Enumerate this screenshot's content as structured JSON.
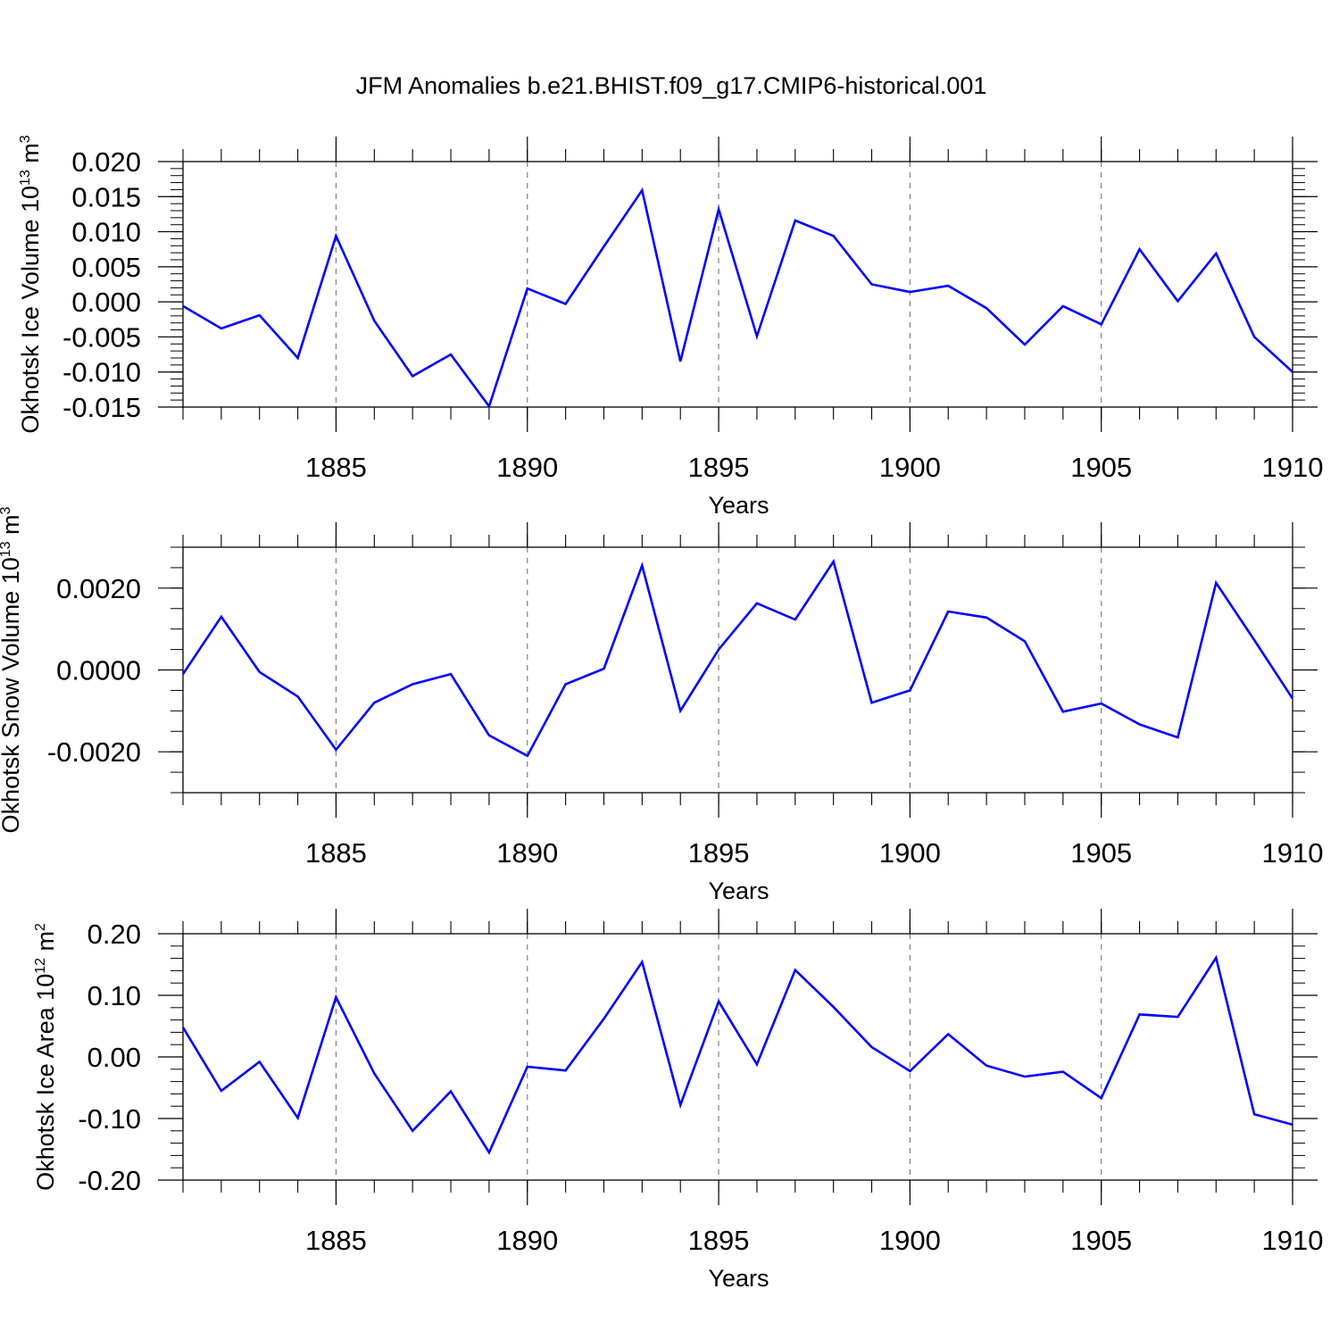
{
  "title": "JFM Anomalies b.e21.BHIST.f09_g17.CMIP6-historical.001",
  "colors": {
    "series": "#0000ff",
    "axis": "#000000",
    "grid": "#808080",
    "background": "#ffffff"
  },
  "chart_data": [
    {
      "type": "line",
      "title": "JFM Anomalies b.e21.BHIST.f09_g17.CMIP6-historical.001",
      "xlabel": "Years",
      "ylabel": {
        "text": "Okhotsk Ice Volume 10",
        "exp": "13",
        "unit": " m",
        "unit_exp": "3"
      },
      "xlim": [
        1881,
        1910
      ],
      "ylim": [
        -0.015,
        0.02
      ],
      "x_ticks": [
        1885,
        1890,
        1895,
        1900,
        1905,
        1910
      ],
      "x_tick_labels": [
        "1885",
        "1890",
        "1895",
        "1900",
        "1905",
        "1910"
      ],
      "y_ticks": [
        -0.015,
        -0.01,
        -0.005,
        0.0,
        0.005,
        0.01,
        0.015,
        0.02
      ],
      "y_tick_labels": [
        "-0.015",
        "-0.010",
        "-0.005",
        "0.000",
        "0.005",
        "0.010",
        "0.015",
        "0.020"
      ],
      "y_minor_step": 0.001,
      "grid": "vertical dashed at major x ticks",
      "x": [
        1881,
        1882,
        1883,
        1884,
        1885,
        1886,
        1887,
        1888,
        1889,
        1890,
        1891,
        1892,
        1893,
        1894,
        1895,
        1896,
        1897,
        1898,
        1899,
        1900,
        1901,
        1902,
        1903,
        1904,
        1905,
        1906,
        1907,
        1908,
        1909,
        1910
      ],
      "series": [
        {
          "name": "Okhotsk Ice Volume",
          "values": [
            -0.0006,
            -0.0038,
            -0.0019,
            -0.008,
            0.0094,
            -0.0027,
            -0.0106,
            -0.0075,
            -0.0149,
            0.0019,
            -0.0003,
            0.0079,
            0.0159,
            -0.0085,
            0.0132,
            -0.0049,
            0.0116,
            0.0094,
            0.0025,
            0.0014,
            0.0023,
            -0.0009,
            -0.0061,
            -0.0006,
            -0.0032,
            0.0075,
            0.0001,
            0.0069,
            -0.005,
            -0.01
          ]
        }
      ]
    },
    {
      "type": "line",
      "xlabel": "Years",
      "ylabel": {
        "text": "Okhotsk Snow Volume 10",
        "exp": "13",
        "unit": " m",
        "unit_exp": "3"
      },
      "xlim": [
        1881,
        1910
      ],
      "ylim": [
        -0.003,
        0.003
      ],
      "x_ticks": [
        1885,
        1890,
        1895,
        1900,
        1905,
        1910
      ],
      "x_tick_labels": [
        "1885",
        "1890",
        "1895",
        "1900",
        "1905",
        "1910"
      ],
      "y_ticks": [
        -0.002,
        0.0,
        0.002
      ],
      "y_tick_labels": [
        "-0.0020",
        "0.0000",
        "0.0020"
      ],
      "y_minor_step": 0.0005,
      "grid": "vertical dashed at major x ticks",
      "x": [
        1881,
        1882,
        1883,
        1884,
        1885,
        1886,
        1887,
        1888,
        1889,
        1890,
        1891,
        1892,
        1893,
        1894,
        1895,
        1896,
        1897,
        1898,
        1899,
        1900,
        1901,
        1902,
        1903,
        1904,
        1905,
        1906,
        1907,
        1908,
        1909,
        1910
      ],
      "series": [
        {
          "name": "Okhotsk Snow Volume",
          "values": [
            -0.0001,
            0.0013,
            -5e-05,
            -0.00065,
            -0.00195,
            -0.0008,
            -0.00035,
            -0.0001,
            -0.0016,
            -0.0021,
            -0.00035,
            3e-05,
            0.00255,
            -0.001,
            0.0005,
            0.00163,
            0.00123,
            0.00265,
            -0.0008,
            -0.0005,
            0.00143,
            0.00128,
            0.0007,
            -0.00102,
            -0.00082,
            -0.00133,
            -0.00165,
            0.00213,
            0.00073,
            -0.0007
          ]
        }
      ]
    },
    {
      "type": "line",
      "xlabel": "Years",
      "ylabel": {
        "text": "Okhotsk Ice Area 10",
        "exp": "12",
        "unit": " m",
        "unit_exp": "2"
      },
      "xlim": [
        1881,
        1910
      ],
      "ylim": [
        -0.2,
        0.2
      ],
      "x_ticks": [
        1885,
        1890,
        1895,
        1900,
        1905,
        1910
      ],
      "x_tick_labels": [
        "1885",
        "1890",
        "1895",
        "1900",
        "1905",
        "1910"
      ],
      "y_ticks": [
        -0.2,
        -0.1,
        0.0,
        0.1,
        0.2
      ],
      "y_tick_labels": [
        "-0.20",
        "-0.10",
        "0.00",
        "0.10",
        "0.20"
      ],
      "y_minor_step": 0.02,
      "grid": "vertical dashed at major x ticks",
      "x": [
        1881,
        1882,
        1883,
        1884,
        1885,
        1886,
        1887,
        1888,
        1889,
        1890,
        1891,
        1892,
        1893,
        1894,
        1895,
        1896,
        1897,
        1898,
        1899,
        1900,
        1901,
        1902,
        1903,
        1904,
        1905,
        1906,
        1907,
        1908,
        1909,
        1910
      ],
      "series": [
        {
          "name": "Okhotsk Ice Area",
          "values": [
            0.048,
            -0.055,
            -0.008,
            -0.099,
            0.097,
            -0.027,
            -0.12,
            -0.056,
            -0.155,
            -0.016,
            -0.022,
            0.062,
            0.154,
            -0.078,
            0.09,
            -0.012,
            0.141,
            0.081,
            0.016,
            -0.023,
            0.037,
            -0.014,
            -0.032,
            -0.024,
            -0.067,
            0.069,
            0.065,
            0.161,
            -0.093,
            -0.11
          ]
        }
      ]
    }
  ]
}
